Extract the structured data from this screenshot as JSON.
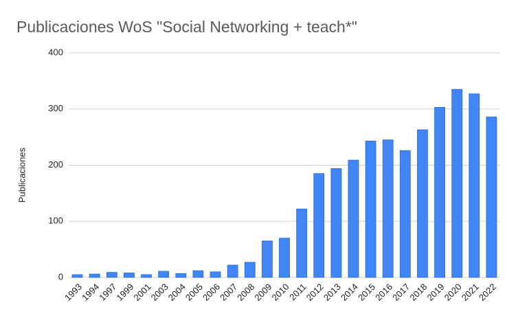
{
  "chart_data": {
    "type": "bar",
    "title": "Publicaciones WoS \"Social Networking + teach*\"",
    "y_label": "Publicaciones",
    "categories": [
      "1993",
      "1994",
      "1997",
      "1999",
      "2001",
      "2003",
      "2004",
      "2005",
      "2006",
      "2007",
      "2008",
      "2009",
      "2010",
      "2011",
      "2012",
      "2013",
      "2014",
      "2015",
      "2016",
      "2017",
      "2018",
      "2019",
      "2020",
      "2021",
      "2022"
    ],
    "values": [
      5,
      6,
      9,
      8,
      5,
      11,
      7,
      12,
      10,
      22,
      27,
      65,
      70,
      122,
      185,
      194,
      209,
      243,
      245,
      226,
      263,
      303,
      335,
      327,
      286
    ],
    "color": "#4285f4",
    "ylim": [
      0,
      400
    ],
    "yticks": [
      0,
      100,
      200,
      300,
      400
    ],
    "grid": true
  }
}
